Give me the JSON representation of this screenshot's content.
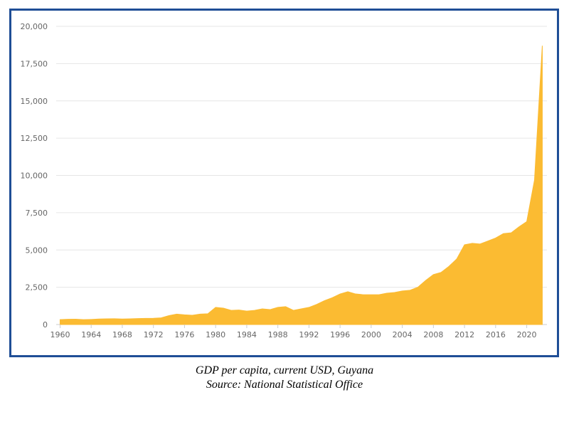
{
  "chart_data": {
    "type": "area",
    "title": "",
    "xlabel": "",
    "ylabel": "",
    "xlim": [
      1960,
      2022
    ],
    "ylim": [
      0,
      20000
    ],
    "grid": true,
    "legend": "none",
    "color": "#fbbb32",
    "x_ticks": [
      1960,
      1964,
      1968,
      1972,
      1976,
      1980,
      1984,
      1988,
      1992,
      1996,
      2000,
      2004,
      2008,
      2012,
      2016,
      2020
    ],
    "x_tick_labels": [
      "1960",
      "1964",
      "1968",
      "1972",
      "1976",
      "1980",
      "1984",
      "1988",
      "1992",
      "1996",
      "2000",
      "2004",
      "2008",
      "2012",
      "2016",
      "2020"
    ],
    "y_ticks": [
      0,
      2500,
      5000,
      7500,
      10000,
      12500,
      15000,
      17500,
      20000
    ],
    "y_tick_labels": [
      "0",
      "2,500",
      "5,000",
      "7,500",
      "10,000",
      "12,500",
      "15,000",
      "17,500",
      "20,000"
    ],
    "series": [
      {
        "x": [
          1960,
          1961,
          1962,
          1963,
          1964,
          1965,
          1966,
          1967,
          1968,
          1969,
          1970,
          1971,
          1972,
          1973,
          1974,
          1975,
          1976,
          1977,
          1978,
          1979,
          1980,
          1981,
          1982,
          1983,
          1984,
          1985,
          1986,
          1987,
          1988,
          1989,
          1990,
          1991,
          1992,
          1993,
          1994,
          1995,
          1996,
          1997,
          1998,
          1999,
          2000,
          2001,
          2002,
          2003,
          2004,
          2005,
          2006,
          2007,
          2008,
          2009,
          2010,
          2011,
          2012,
          2013,
          2014,
          2015,
          2016,
          2017,
          2018,
          2019,
          2020,
          2021,
          2022
        ],
        "values": [
          330,
          350,
          360,
          330,
          340,
          370,
          380,
          390,
          370,
          380,
          400,
          410,
          420,
          450,
          600,
          700,
          650,
          620,
          700,
          720,
          1150,
          1100,
          950,
          970,
          900,
          950,
          1050,
          1000,
          1150,
          1200,
          950,
          1050,
          1150,
          1350,
          1600,
          1800,
          2050,
          2200,
          2050,
          2000,
          2000,
          2000,
          2100,
          2150,
          2250,
          2300,
          2500,
          2950,
          3350,
          3500,
          3900,
          4400,
          5350,
          5450,
          5400,
          5600,
          5800,
          6100,
          6150,
          6550,
          6900,
          9700,
          18700
        ]
      }
    ]
  },
  "caption": {
    "line1": "GDP per capita, current USD, Guyana",
    "line2": "Source: National Statistical Office"
  }
}
